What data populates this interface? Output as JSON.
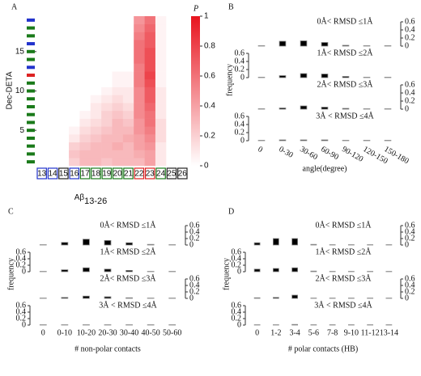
{
  "chart_data": [
    {
      "type": "heatmap",
      "panel": "A",
      "xlabel": "Aβ",
      "xlabel_sub": "13-26",
      "ylabel": "Dec-DETA",
      "categories": [
        13,
        14,
        15,
        16,
        17,
        18,
        19,
        20,
        21,
        22,
        23,
        24,
        25,
        26
      ],
      "category_colors": [
        "#2233cc",
        "#2233cc",
        "#222222",
        "#2233cc",
        "#1a7a1a",
        "#1a7a1a",
        "#1a7a1a",
        "#1a7a1a",
        "#1a7a1a",
        "#dd2222",
        "#dd2222",
        "#1a7a1a",
        "#222222",
        "#222222"
      ],
      "ylim": [
        0.5,
        19.5
      ],
      "yticks": [
        5,
        10,
        15
      ],
      "row_colors": [
        "#1a7a1a",
        "#1a7a1a",
        "#1a7a1a",
        "#1a7a1a",
        "#1a7a1a",
        "#1a7a1a",
        "#1a7a1a",
        "#1a7a1a",
        "#1a7a1a",
        "#1a7a1a",
        "#1a7a1a",
        "#dd2222",
        "#2233cc",
        "#1a7a1a",
        "#1a7a1a",
        "#2233cc",
        "#1a7a1a",
        "#1a7a1a",
        "#2233cc"
      ],
      "z": [
        [
          0,
          0,
          0,
          0.2,
          0.3,
          0.3,
          0.25,
          0.3,
          0.3,
          0.3,
          0.4,
          0.1,
          0,
          0
        ],
        [
          0,
          0,
          0,
          0.25,
          0.3,
          0.3,
          0.3,
          0.3,
          0.3,
          0.35,
          0.4,
          0.1,
          0,
          0
        ],
        [
          0,
          0,
          0,
          0.2,
          0.25,
          0.3,
          0.3,
          0.35,
          0.3,
          0.4,
          0.45,
          0.1,
          0,
          0
        ],
        [
          0,
          0,
          0,
          0.1,
          0.2,
          0.25,
          0.3,
          0.3,
          0.35,
          0.4,
          0.5,
          0.15,
          0,
          0
        ],
        [
          0,
          0,
          0,
          0.05,
          0.15,
          0.2,
          0.25,
          0.3,
          0.3,
          0.45,
          0.55,
          0.15,
          0,
          0
        ],
        [
          0,
          0,
          0,
          0,
          0.1,
          0.15,
          0.2,
          0.3,
          0.25,
          0.45,
          0.6,
          0.15,
          0,
          0
        ],
        [
          0,
          0,
          0,
          0,
          0.05,
          0.1,
          0.2,
          0.25,
          0.2,
          0.5,
          0.6,
          0.1,
          0,
          0
        ],
        [
          0,
          0,
          0,
          0,
          0,
          0.1,
          0.15,
          0.2,
          0.15,
          0.5,
          0.65,
          0.1,
          0,
          0
        ],
        [
          0,
          0,
          0,
          0,
          0,
          0.05,
          0.1,
          0.15,
          0.1,
          0.5,
          0.7,
          0.1,
          0,
          0
        ],
        [
          0,
          0,
          0,
          0,
          0,
          0,
          0.05,
          0.1,
          0.1,
          0.5,
          0.7,
          0.1,
          0,
          0
        ],
        [
          0,
          0,
          0,
          0,
          0,
          0,
          0,
          0.05,
          0.05,
          0.55,
          0.75,
          0.05,
          0,
          0
        ],
        [
          0,
          0,
          0,
          0,
          0,
          0,
          0,
          0.05,
          0.05,
          0.55,
          0.8,
          0.05,
          0,
          0
        ],
        [
          0,
          0,
          0,
          0,
          0,
          0,
          0,
          0,
          0,
          0.55,
          0.75,
          0.05,
          0,
          0
        ],
        [
          0,
          0,
          0,
          0,
          0,
          0,
          0,
          0,
          0,
          0.6,
          0.75,
          0.05,
          0,
          0
        ],
        [
          0,
          0,
          0,
          0,
          0,
          0,
          0,
          0,
          0,
          0.6,
          0.75,
          0.05,
          0,
          0
        ],
        [
          0,
          0,
          0,
          0,
          0,
          0,
          0,
          0,
          0,
          0.6,
          0.7,
          0.05,
          0,
          0
        ],
        [
          0,
          0,
          0,
          0,
          0,
          0,
          0,
          0,
          0,
          0.55,
          0.7,
          0.05,
          0,
          0
        ],
        [
          0,
          0,
          0,
          0,
          0,
          0,
          0,
          0,
          0,
          0.5,
          0.65,
          0.05,
          0,
          0
        ],
        [
          0,
          0,
          0,
          0,
          0,
          0,
          0,
          0,
          0,
          0.45,
          0.6,
          0.05,
          0,
          0
        ]
      ],
      "cmap": [
        "#ffffff",
        "#e8141e"
      ],
      "colorbar": {
        "label": "P",
        "lim": [
          0,
          1
        ],
        "ticks": [
          0,
          0.2,
          0.4,
          0.6,
          0.8,
          1
        ]
      }
    },
    {
      "type": "bar",
      "panel": "B",
      "xlabel": "angle(degree)",
      "ylabel": "frequency",
      "color": "#000000",
      "xtick_rotation": 30,
      "categories": [
        "0",
        "0-30",
        "30-60",
        "60-90",
        "90-120",
        "120-150",
        "150-180"
      ],
      "ylim": [
        0,
        0.6
      ],
      "yticks": [
        0,
        0.2,
        0.4,
        0.6
      ],
      "subplots": [
        {
          "label": "0Å< RMSD ≤1Å",
          "axis_side": "right",
          "values": [
            0.01,
            0.12,
            0.13,
            0.09,
            0.02,
            0.01,
            0.01
          ]
        },
        {
          "label": "1Å< RMSD ≤2Å",
          "axis_side": "left",
          "values": [
            0.01,
            0.05,
            0.1,
            0.09,
            0.03,
            0.01,
            0.01
          ]
        },
        {
          "label": "2Å< RMSD ≤3Å",
          "axis_side": "right",
          "values": [
            0.01,
            0.03,
            0.08,
            0.05,
            0.02,
            0.01,
            0.01
          ]
        },
        {
          "label": "3Å < RMSD ≤4Å",
          "axis_side": "left",
          "values": [
            0.01,
            0.02,
            0.02,
            0.02,
            0.01,
            0.01,
            0.01
          ]
        }
      ]
    },
    {
      "type": "bar",
      "panel": "C",
      "xlabel": "# non-polar contacts",
      "ylabel": "frequency",
      "color": "#000000",
      "xtick_rotation": 0,
      "categories": [
        "0",
        "0-10",
        "10-20",
        "20-30",
        "30-40",
        "40-50",
        "50-60"
      ],
      "ylim": [
        0,
        0.6
      ],
      "yticks": [
        0,
        0.2,
        0.4,
        0.6
      ],
      "subplots": [
        {
          "label": "0Å< RMSD ≤1Å",
          "axis_side": "right",
          "values": [
            0.01,
            0.08,
            0.18,
            0.14,
            0.07,
            0.02,
            0.01
          ]
        },
        {
          "label": "1Å< RMSD ≤2Å",
          "axis_side": "left",
          "values": [
            0.01,
            0.06,
            0.12,
            0.08,
            0.04,
            0.01,
            0.01
          ]
        },
        {
          "label": "2Å< RMSD ≤3Å",
          "axis_side": "right",
          "values": [
            0.01,
            0.03,
            0.07,
            0.05,
            0.02,
            0.01,
            0.01
          ]
        },
        {
          "label": "3Å < RMSD ≤4Å",
          "axis_side": "left",
          "values": [
            0.01,
            0.01,
            0.01,
            0.01,
            0.01,
            0.01,
            0.01
          ]
        }
      ]
    },
    {
      "type": "bar",
      "panel": "D",
      "xlabel": "# polar contacts (HB)",
      "ylabel": "frequency",
      "color": "#000000",
      "xtick_rotation": 0,
      "categories": [
        "0",
        "1-2",
        "3-4",
        "5-6",
        "7-8",
        "9-10",
        "11-12",
        "13-14"
      ],
      "ylim": [
        0,
        0.6
      ],
      "yticks": [
        0,
        0.2,
        0.4,
        0.6
      ],
      "subplots": [
        {
          "label": "0Å< RMSD ≤1Å",
          "axis_side": "right",
          "values": [
            0.07,
            0.2,
            0.2,
            0.02,
            0.01,
            0.01,
            0.01,
            0.01
          ]
        },
        {
          "label": "1Å< RMSD ≤2Å",
          "axis_side": "left",
          "values": [
            0.08,
            0.1,
            0.12,
            0.02,
            0.01,
            0.01,
            0.01,
            0.01
          ]
        },
        {
          "label": "2Å< RMSD ≤3Å",
          "axis_side": "right",
          "values": [
            0.02,
            0.03,
            0.1,
            0.01,
            0.01,
            0.01,
            0.01,
            0.01
          ]
        },
        {
          "label": "3Å < RMSD ≤4Å",
          "axis_side": "left",
          "values": [
            0.01,
            0.01,
            0.02,
            0.01,
            0.01,
            0.01,
            0.01,
            0.01
          ]
        }
      ]
    }
  ]
}
